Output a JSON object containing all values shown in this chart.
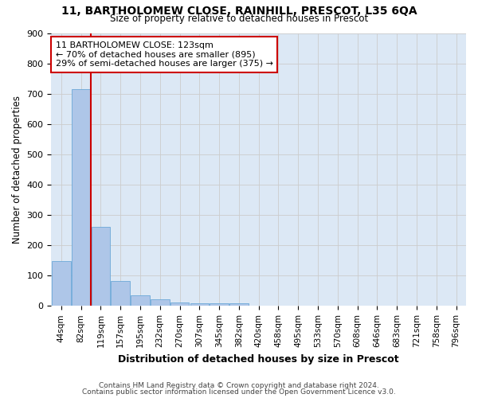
{
  "title1": "11, BARTHOLOMEW CLOSE, RAINHILL, PRESCOT, L35 6QA",
  "title2": "Size of property relative to detached houses in Prescot",
  "xlabel": "Distribution of detached houses by size in Prescot",
  "ylabel": "Number of detached properties",
  "categories": [
    "44sqm",
    "82sqm",
    "119sqm",
    "157sqm",
    "195sqm",
    "232sqm",
    "270sqm",
    "307sqm",
    "345sqm",
    "382sqm",
    "420sqm",
    "458sqm",
    "495sqm",
    "533sqm",
    "570sqm",
    "608sqm",
    "646sqm",
    "683sqm",
    "721sqm",
    "758sqm",
    "796sqm"
  ],
  "values": [
    149,
    714,
    261,
    83,
    36,
    22,
    12,
    10,
    10,
    10,
    0,
    0,
    0,
    0,
    0,
    0,
    0,
    0,
    0,
    0,
    0
  ],
  "bar_color": "#aec6e8",
  "bar_edge_color": "#5a9fd4",
  "vline_color": "#cc0000",
  "annotation_lines": [
    "11 BARTHOLOMEW CLOSE: 123sqm",
    "← 70% of detached houses are smaller (895)",
    "29% of semi-detached houses are larger (375) →"
  ],
  "annotation_box_color": "#cc0000",
  "ylim": [
    0,
    900
  ],
  "yticks": [
    0,
    100,
    200,
    300,
    400,
    500,
    600,
    700,
    800,
    900
  ],
  "grid_color": "#cccccc",
  "background_color": "#dce8f5",
  "footer1": "Contains HM Land Registry data © Crown copyright and database right 2024.",
  "footer2": "Contains public sector information licensed under the Open Government Licence v3.0."
}
